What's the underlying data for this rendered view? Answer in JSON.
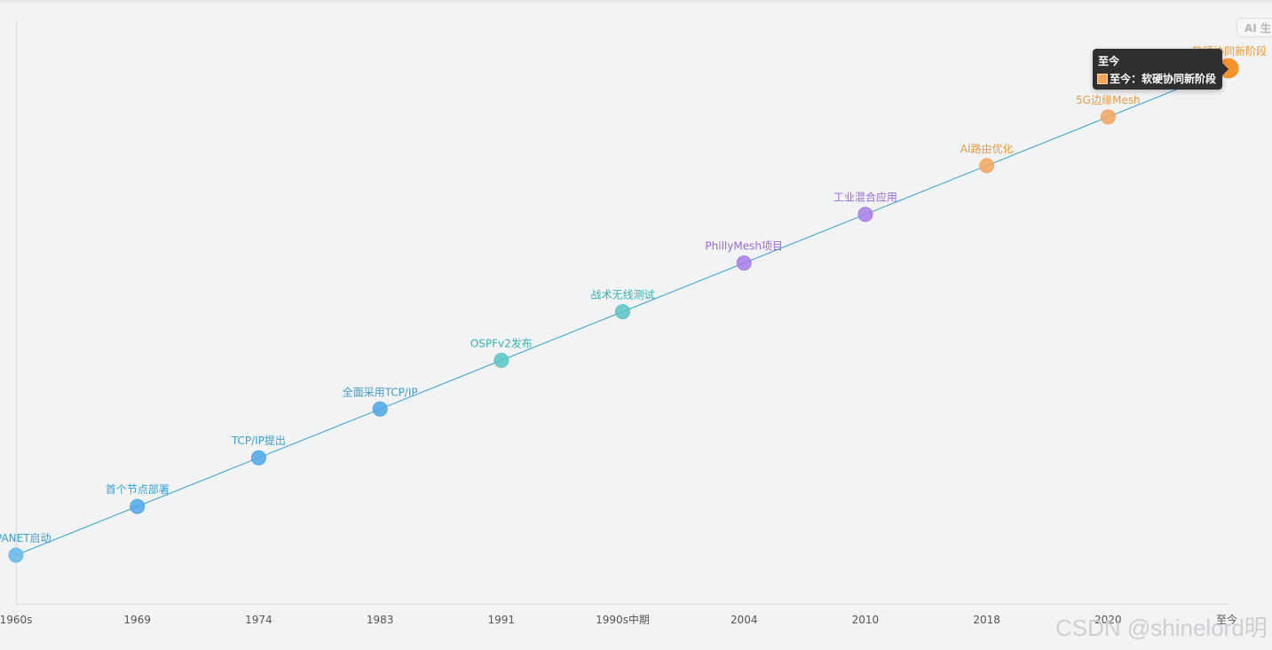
{
  "chart_data": {
    "type": "line",
    "categories": [
      "1960s",
      "1969",
      "1974",
      "1983",
      "1991",
      "1990s中期",
      "2004",
      "2010",
      "2018",
      "2020",
      "至今"
    ],
    "values": [
      0,
      1,
      2,
      3,
      4,
      5,
      6,
      7,
      8,
      9,
      10
    ],
    "point_labels": [
      "ARPANET启动",
      "首个节点部署",
      "TCP/IP提出",
      "全面采用TCP/IP",
      "OSPFv2发布",
      "战术无线测试",
      "PhillyMesh项目",
      "工业混合应用",
      "AI路由优化",
      "5G边缘Mesh",
      "软硬协同新阶段"
    ],
    "point_colors": [
      "#6ab6ea",
      "#4ea6e6",
      "#4ea6e6",
      "#4ea6e6",
      "#5bc4c4",
      "#5bc4c4",
      "#a97be8",
      "#a97be8",
      "#f5a45c",
      "#f5a45c",
      "#f7932e"
    ],
    "label_colors": [
      "#3a9fd6",
      "#3a9fd6",
      "#3a9fd6",
      "#3a9fd6",
      "#36b3b0",
      "#36b3b0",
      "#9a6ae0",
      "#9a6ae0",
      "#f29a3f",
      "#f29a3f",
      "#f29a3f"
    ],
    "line_color": "#3a9fd6",
    "grid": false,
    "legend": "none"
  },
  "tooltip": {
    "title": "至今",
    "series_label": "至今：软硬协同新阶段"
  },
  "badge": {
    "label": "AI 生"
  },
  "watermark": {
    "text": "CSDN @shinelord明"
  }
}
